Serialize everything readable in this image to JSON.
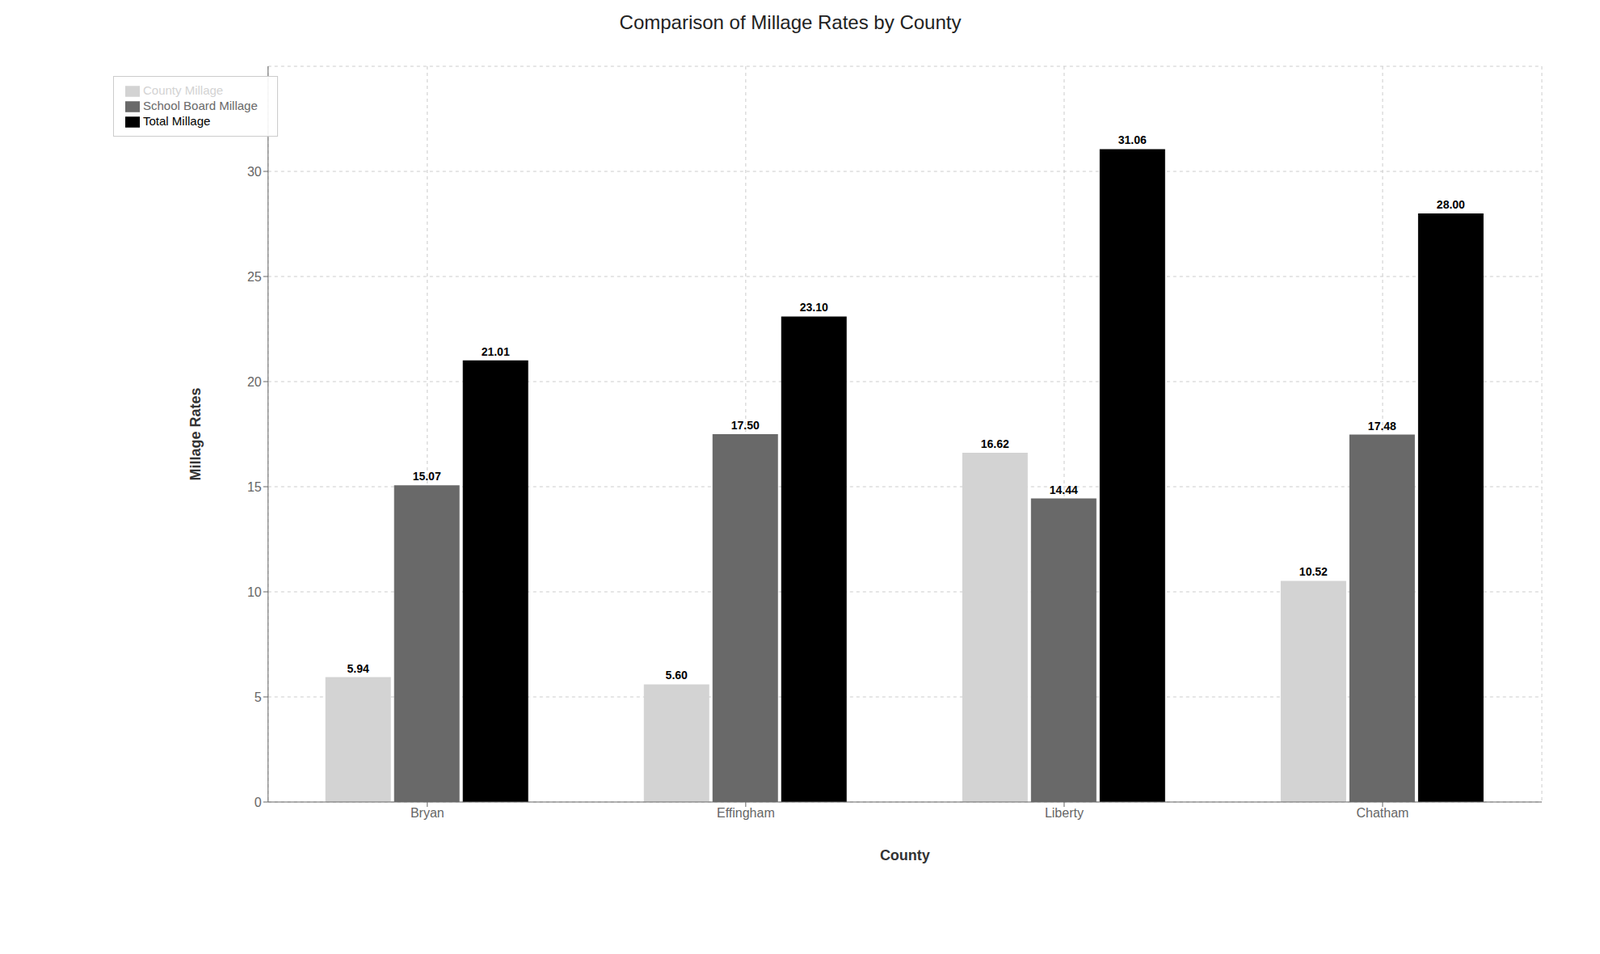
{
  "chart_data": {
    "type": "bar",
    "title": "Comparison of Millage Rates by County",
    "x_label": "County",
    "y_label": "Millage Rates",
    "categories": [
      "Bryan",
      "Effingham",
      "Liberty",
      "Chatham"
    ],
    "series": [
      {
        "name": "County Millage",
        "color": "#d3d3d3",
        "values": [
          5.94,
          5.6,
          16.62,
          10.52
        ],
        "value_labels": [
          "5.94",
          "5.60",
          "16.62",
          "10.52"
        ]
      },
      {
        "name": "School Board Millage",
        "color": "#696969",
        "values": [
          15.07,
          17.5,
          14.44,
          17.48
        ],
        "value_labels": [
          "15.07",
          "17.50",
          "14.44",
          "17.48"
        ]
      },
      {
        "name": "Total Millage",
        "color": "#000000",
        "values": [
          21.01,
          23.1,
          31.06,
          28.0
        ],
        "value_labels": [
          "21.01",
          "23.10",
          "31.06",
          "28.00"
        ]
      }
    ],
    "ylim": [
      0,
      35
    ],
    "yticks": [
      0,
      5,
      10,
      15,
      20,
      25,
      30
    ],
    "grid": true,
    "legend": "upper left",
    "data_labels": true
  }
}
